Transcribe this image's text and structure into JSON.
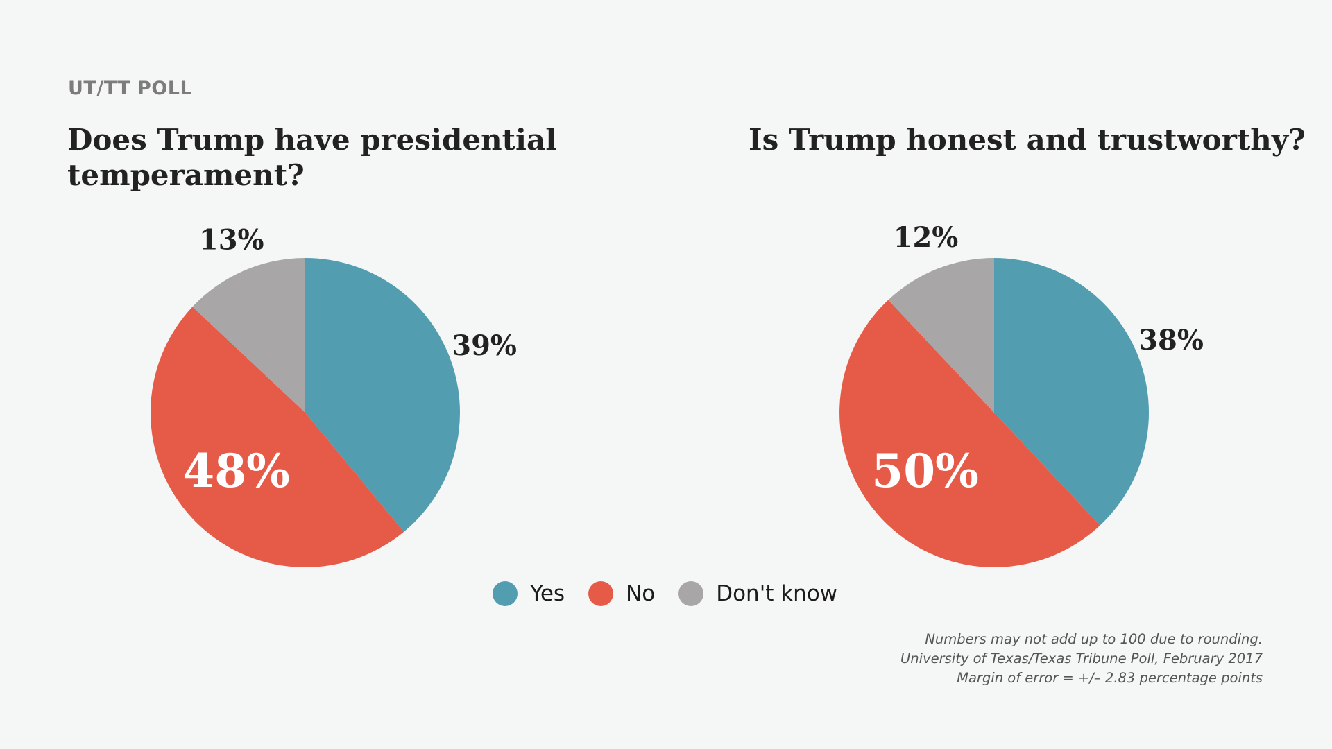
{
  "kicker": "UT/TT POLL",
  "colors": {
    "yes": "#539db1",
    "no": "#e65b48",
    "dont_know": "#a8a6a7"
  },
  "legend": [
    {
      "label": "Yes",
      "color": "#539db1"
    },
    {
      "label": "No",
      "color": "#e65b48"
    },
    {
      "label": "Don't know",
      "color": "#a8a6a7"
    }
  ],
  "chart_data": [
    {
      "type": "pie",
      "title": "Does Trump have presidential temperament?",
      "slices": [
        {
          "label": "Yes",
          "value": 39,
          "display": "39%",
          "color": "#539db1"
        },
        {
          "label": "No",
          "value": 48,
          "display": "48%",
          "color": "#e65b48"
        },
        {
          "label": "Don't know",
          "value": 13,
          "display": "13%",
          "color": "#a8a6a7"
        }
      ]
    },
    {
      "type": "pie",
      "title": "Is Trump honest and trustworthy?",
      "slices": [
        {
          "label": "Yes",
          "value": 38,
          "display": "38%",
          "color": "#539db1"
        },
        {
          "label": "No",
          "value": 50,
          "display": "50%",
          "color": "#e65b48"
        },
        {
          "label": "Don't know",
          "value": 12,
          "display": "12%",
          "color": "#a8a6a7"
        }
      ]
    }
  ],
  "footnote": {
    "line1": "Numbers may not add up to 100 due to rounding.",
    "line2": "University of Texas/Texas Tribune Poll, February 2017",
    "line3": "Margin of error = +/– 2.83 percentage points"
  }
}
